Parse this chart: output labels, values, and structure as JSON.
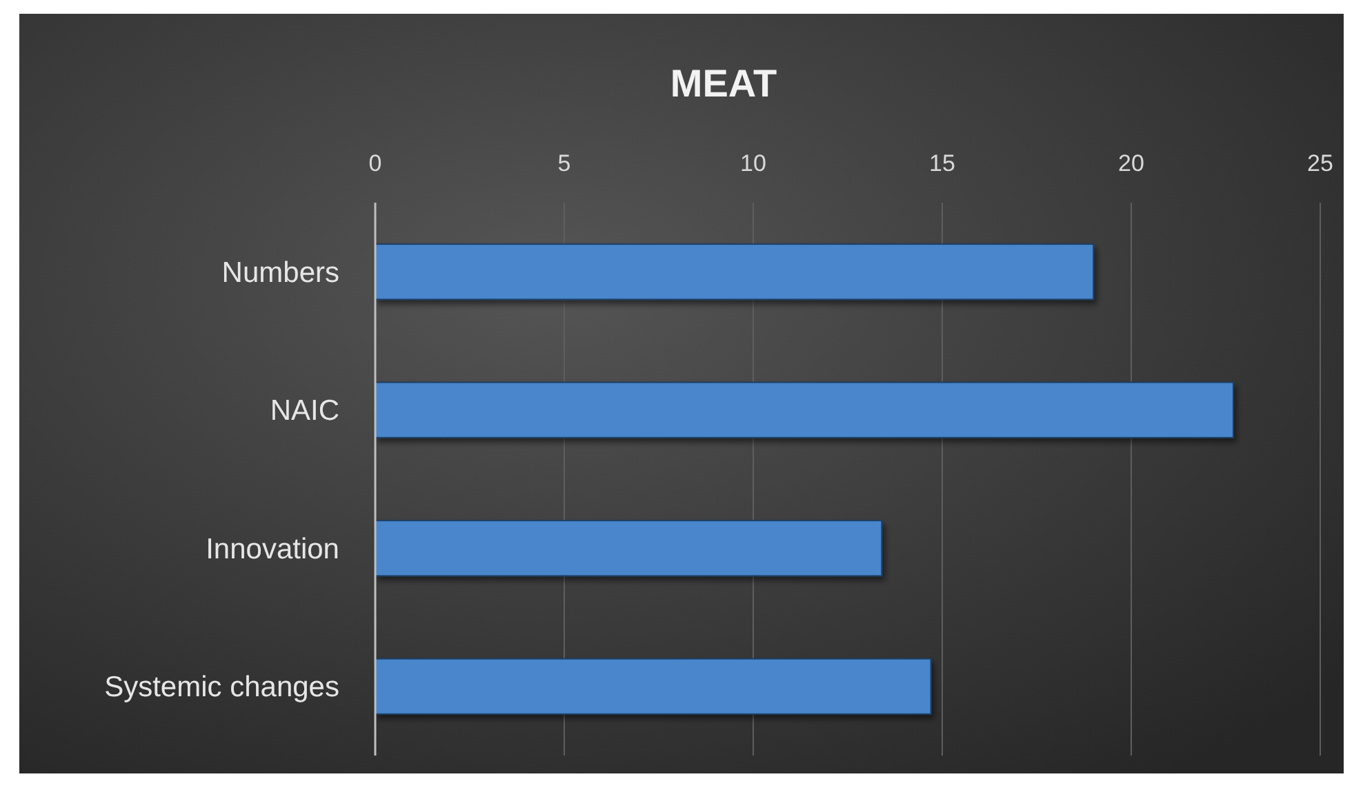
{
  "chart_data": {
    "type": "bar",
    "orientation": "horizontal",
    "title": "MEAT",
    "categories": [
      "Numbers",
      "NAIC",
      "Innovation",
      "Systemic changes"
    ],
    "values": [
      19,
      22.7,
      13.4,
      14.7
    ],
    "color": "#4a86cc",
    "xlim": [
      0,
      25
    ],
    "xticks": [
      0,
      5,
      10,
      15,
      20,
      25
    ],
    "grid": "x"
  }
}
